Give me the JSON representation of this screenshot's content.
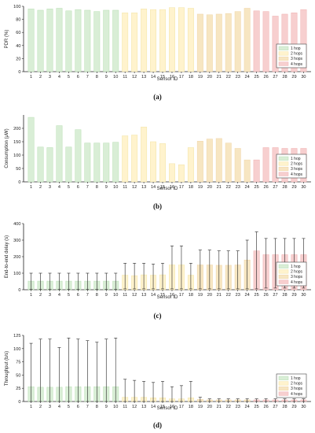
{
  "colors": {
    "1 hop": "#d9eed6",
    "2 hops": "#fff3cd",
    "3 hops": "#f7e6c2",
    "4 hops": "#f7cfcf",
    "bar_stroke_1": "#b8dfb3",
    "bar_stroke_2": "#f2e3a6",
    "bar_stroke_3": "#efd4a6",
    "bar_stroke_4": "#efb0b0"
  },
  "chart_data": [
    {
      "type": "bar",
      "caption": "(a)",
      "xlabel": "Sensor ID",
      "ylabel": "PDR (%)",
      "ylim": [
        0,
        100
      ],
      "yticks": [
        0,
        20,
        40,
        60,
        80,
        100
      ],
      "categories": [
        "1",
        "2",
        "3",
        "4",
        "5",
        "6",
        "7",
        "8",
        "9",
        "10",
        "11",
        "12",
        "13",
        "14",
        "15",
        "16",
        "17",
        "18",
        "19",
        "20",
        "21",
        "22",
        "23",
        "24",
        "25",
        "26",
        "27",
        "28",
        "29",
        "30"
      ],
      "groups": [
        "1 hop",
        "1 hop",
        "1 hop",
        "1 hop",
        "1 hop",
        "1 hop",
        "1 hop",
        "1 hop",
        "1 hop",
        "1 hop",
        "2 hops",
        "2 hops",
        "2 hops",
        "2 hops",
        "2 hops",
        "2 hops",
        "2 hops",
        "2 hops",
        "3 hops",
        "3 hops",
        "3 hops",
        "3 hops",
        "3 hops",
        "3 hops",
        "4 hops",
        "4 hops",
        "4 hops",
        "4 hops",
        "4 hops",
        "4 hops"
      ],
      "values": [
        96,
        94,
        96,
        97,
        93,
        95,
        94,
        92,
        94,
        94,
        90,
        90,
        96,
        95,
        95,
        98,
        98,
        97,
        88,
        87,
        88,
        89,
        92,
        97,
        93,
        92,
        85,
        88,
        90,
        95
      ],
      "legend": [
        "1 hop",
        "2 hops",
        "3 hops",
        "4 hops"
      ],
      "legend_position": "bottom-right"
    },
    {
      "type": "bar",
      "caption": "(b)",
      "xlabel": "Sensor ID",
      "ylabel": "Consumption (μW)",
      "ylim": [
        0,
        250
      ],
      "yticks": [
        0,
        50,
        100,
        150,
        200
      ],
      "categories": [
        "1",
        "2",
        "3",
        "4",
        "5",
        "6",
        "7",
        "8",
        "9",
        "10",
        "11",
        "12",
        "13",
        "14",
        "15",
        "16",
        "17",
        "18",
        "19",
        "20",
        "21",
        "22",
        "23",
        "24",
        "25",
        "26",
        "27",
        "28",
        "29",
        "30"
      ],
      "groups": [
        "1 hop",
        "1 hop",
        "1 hop",
        "1 hop",
        "1 hop",
        "1 hop",
        "1 hop",
        "1 hop",
        "1 hop",
        "1 hop",
        "2 hops",
        "2 hops",
        "2 hops",
        "2 hops",
        "2 hops",
        "2 hops",
        "2 hops",
        "2 hops",
        "3 hops",
        "3 hops",
        "3 hops",
        "3 hops",
        "3 hops",
        "3 hops",
        "4 hops",
        "4 hops",
        "4 hops",
        "4 hops",
        "4 hops",
        "4 hops"
      ],
      "values": [
        241,
        130,
        128,
        210,
        130,
        195,
        145,
        145,
        145,
        148,
        172,
        175,
        205,
        150,
        143,
        68,
        64,
        128,
        152,
        160,
        162,
        145,
        125,
        82,
        82,
        128,
        128,
        125,
        125,
        125
      ],
      "legend": [
        "1 hop",
        "2 hops",
        "3 hops",
        "4 hops"
      ],
      "legend_position": "bottom-right"
    },
    {
      "type": "bar",
      "caption": "(c)",
      "xlabel": "Sensor ID",
      "ylabel": "End-to-end delay (s)",
      "ylim": [
        0,
        400
      ],
      "yticks": [
        0,
        100,
        200,
        300,
        400
      ],
      "categories": [
        "1",
        "2",
        "3",
        "4",
        "5",
        "6",
        "7",
        "8",
        "9",
        "10",
        "11",
        "12",
        "13",
        "14",
        "15",
        "16",
        "17",
        "18",
        "19",
        "20",
        "21",
        "22",
        "23",
        "24",
        "25",
        "26",
        "27",
        "28",
        "29",
        "30"
      ],
      "groups": [
        "1 hop",
        "1 hop",
        "1 hop",
        "1 hop",
        "1 hop",
        "1 hop",
        "1 hop",
        "1 hop",
        "1 hop",
        "1 hop",
        "2 hops",
        "2 hops",
        "2 hops",
        "2 hops",
        "2 hops",
        "2 hops",
        "2 hops",
        "2 hops",
        "3 hops",
        "3 hops",
        "3 hops",
        "3 hops",
        "3 hops",
        "3 hops",
        "4 hops",
        "4 hops",
        "4 hops",
        "4 hops",
        "4 hops",
        "4 hops"
      ],
      "values": [
        52,
        52,
        52,
        52,
        52,
        52,
        52,
        52,
        52,
        52,
        88,
        85,
        90,
        88,
        90,
        150,
        150,
        88,
        150,
        150,
        148,
        148,
        150,
        180,
        235,
        212,
        212,
        212,
        212,
        212
      ],
      "err_low": [
        2,
        2,
        2,
        2,
        2,
        2,
        2,
        2,
        2,
        2,
        5,
        5,
        5,
        5,
        5,
        5,
        5,
        5,
        5,
        5,
        5,
        5,
        5,
        5,
        5,
        10,
        10,
        10,
        10,
        10
      ],
      "err_high": [
        100,
        100,
        100,
        100,
        100,
        100,
        100,
        100,
        100,
        100,
        160,
        160,
        160,
        155,
        160,
        265,
        265,
        160,
        240,
        240,
        235,
        235,
        235,
        300,
        350,
        310,
        310,
        310,
        310,
        310
      ],
      "legend": [
        "1 hop",
        "2 hops",
        "3 hops",
        "4 hops"
      ],
      "legend_position": "bottom-right"
    },
    {
      "type": "bar",
      "caption": "(d)",
      "xlabel": "Sensor ID",
      "ylabel": "Throughput (b/s)",
      "ylim": [
        0,
        125
      ],
      "yticks": [
        0,
        25,
        50,
        75,
        100,
        125
      ],
      "categories": [
        "1",
        "2",
        "3",
        "4",
        "5",
        "6",
        "7",
        "8",
        "9",
        "10",
        "11",
        "12",
        "13",
        "14",
        "15",
        "16",
        "17",
        "18",
        "19",
        "20",
        "21",
        "22",
        "23",
        "24",
        "25",
        "26",
        "27",
        "28",
        "29",
        "30"
      ],
      "groups": [
        "1 hop",
        "1 hop",
        "1 hop",
        "1 hop",
        "1 hop",
        "1 hop",
        "1 hop",
        "1 hop",
        "1 hop",
        "1 hop",
        "2 hops",
        "2 hops",
        "2 hops",
        "2 hops",
        "2 hops",
        "2 hops",
        "2 hops",
        "2 hops",
        "3 hops",
        "3 hops",
        "3 hops",
        "3 hops",
        "3 hops",
        "3 hops",
        "4 hops",
        "4 hops",
        "4 hops",
        "4 hops",
        "4 hops",
        "4 hops"
      ],
      "values": [
        28,
        27,
        27,
        27,
        28,
        28,
        28,
        28,
        28,
        28,
        8,
        8,
        8,
        7,
        7,
        5,
        5,
        7,
        4,
        3,
        3,
        3,
        3,
        3,
        3,
        3,
        3,
        3,
        3,
        3
      ],
      "err_low": [
        0,
        0,
        0,
        0,
        0,
        0,
        0,
        0,
        0,
        0,
        0,
        0,
        0,
        0,
        0,
        0,
        0,
        0,
        0,
        0,
        0,
        0,
        0,
        0,
        0,
        0,
        0,
        0,
        0,
        0
      ],
      "err_high": [
        110,
        118,
        118,
        102,
        120,
        118,
        115,
        112,
        118,
        120,
        42,
        40,
        38,
        36,
        38,
        28,
        30,
        38,
        8,
        5,
        5,
        5,
        5,
        5,
        5,
        5,
        5,
        5,
        5,
        5
      ],
      "legend": [
        "1 hop",
        "2 hops",
        "3 hops",
        "4 hops"
      ],
      "legend_position": "bottom-right"
    }
  ]
}
